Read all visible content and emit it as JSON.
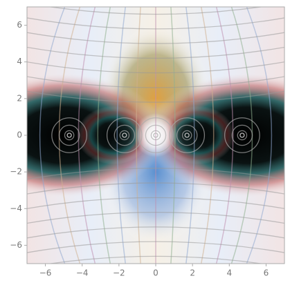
{
  "chart_data": {
    "type": "domain_coloring",
    "xlim": [
      -7,
      7
    ],
    "ylim": [
      -7,
      7
    ],
    "xticks": [
      {
        "value": -6,
        "label": "−6"
      },
      {
        "value": -4,
        "label": "−4"
      },
      {
        "value": -2,
        "label": "−2"
      },
      0,
      2,
      4,
      6
    ],
    "yticks": [
      {
        "value": -6,
        "label": "−6"
      },
      {
        "value": -4,
        "label": "−4"
      },
      {
        "value": -2,
        "label": "−2"
      },
      0,
      2,
      4,
      6
    ],
    "zeros": {
      "x": [
        -4.7,
        -1.7,
        0,
        1.7,
        4.7
      ],
      "y": [
        0,
        0,
        0,
        0,
        0
      ]
    }
  }
}
